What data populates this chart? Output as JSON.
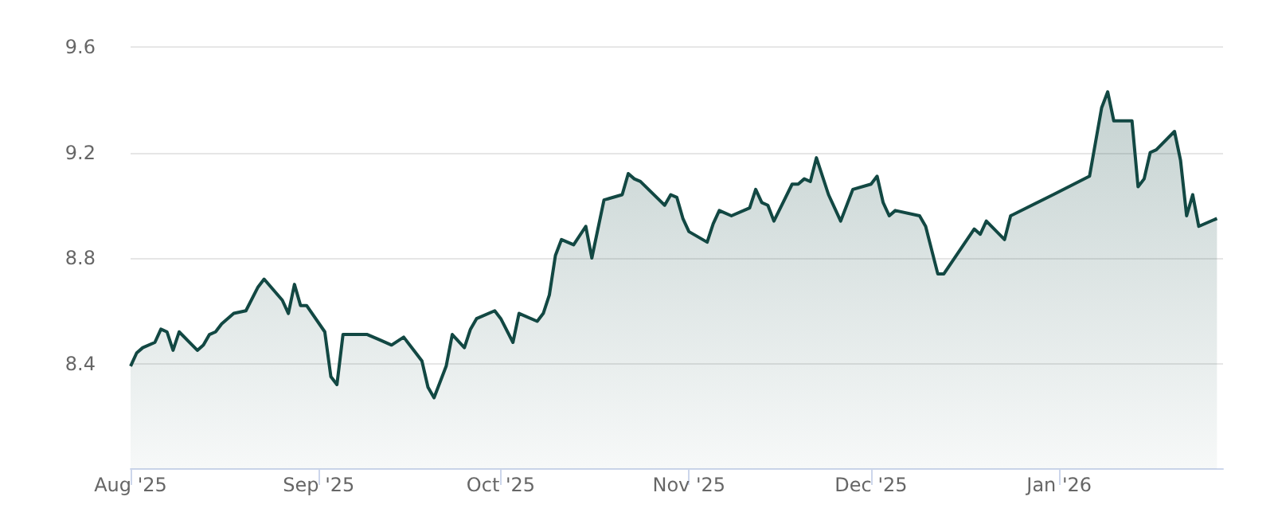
{
  "chart_data": {
    "type": "area",
    "x": [
      "2025-08-01",
      "2025-08-02",
      "2025-08-03",
      "2025-08-05",
      "2025-08-06",
      "2025-08-07",
      "2025-08-08",
      "2025-08-09",
      "2025-08-12",
      "2025-08-13",
      "2025-08-14",
      "2025-08-15",
      "2025-08-16",
      "2025-08-18",
      "2025-08-20",
      "2025-08-22",
      "2025-08-23",
      "2025-08-26",
      "2025-08-27",
      "2025-08-28",
      "2025-08-29",
      "2025-08-30",
      "2025-09-02",
      "2025-09-03",
      "2025-09-04",
      "2025-09-05",
      "2025-09-09",
      "2025-09-11",
      "2025-09-13",
      "2025-09-15",
      "2025-09-17",
      "2025-09-18",
      "2025-09-19",
      "2025-09-20",
      "2025-09-22",
      "2025-09-23",
      "2025-09-25",
      "2025-09-26",
      "2025-09-27",
      "2025-09-30",
      "2025-10-01",
      "2025-10-03",
      "2025-10-04",
      "2025-10-07",
      "2025-10-08",
      "2025-10-09",
      "2025-10-10",
      "2025-10-11",
      "2025-10-13",
      "2025-10-15",
      "2025-10-16",
      "2025-10-18",
      "2025-10-21",
      "2025-10-22",
      "2025-10-23",
      "2025-10-24",
      "2025-10-28",
      "2025-10-29",
      "2025-10-30",
      "2025-10-31",
      "2025-11-01",
      "2025-11-04",
      "2025-11-05",
      "2025-11-06",
      "2025-11-08",
      "2025-11-11",
      "2025-11-12",
      "2025-11-13",
      "2025-11-14",
      "2025-11-15",
      "2025-11-18",
      "2025-11-19",
      "2025-11-20",
      "2025-11-21",
      "2025-11-22",
      "2025-11-24",
      "2025-11-26",
      "2025-11-28",
      "2025-12-01",
      "2025-12-02",
      "2025-12-03",
      "2025-12-04",
      "2025-12-05",
      "2025-12-09",
      "2025-12-10",
      "2025-12-12",
      "2025-12-13",
      "2025-12-18",
      "2025-12-19",
      "2025-12-20",
      "2025-12-23",
      "2025-12-24",
      "2025-12-31",
      "2026-01-06",
      "2026-01-07",
      "2026-01-08",
      "2026-01-09",
      "2026-01-10",
      "2026-01-13",
      "2026-01-14",
      "2026-01-15",
      "2026-01-16",
      "2026-01-17",
      "2026-01-20",
      "2026-01-21",
      "2026-01-22",
      "2026-01-23",
      "2026-01-24",
      "2026-01-27"
    ],
    "series": [
      {
        "color": "#124843",
        "values": [
          8.39,
          8.44,
          8.46,
          8.48,
          8.53,
          8.52,
          8.45,
          8.52,
          8.45,
          8.47,
          8.51,
          8.52,
          8.55,
          8.59,
          8.6,
          8.69,
          8.72,
          8.64,
          8.59,
          8.7,
          8.62,
          8.62,
          8.52,
          8.35,
          8.32,
          8.51,
          8.51,
          8.49,
          8.47,
          8.5,
          8.44,
          8.41,
          8.31,
          8.27,
          8.39,
          8.51,
          8.46,
          8.53,
          8.57,
          8.6,
          8.57,
          8.48,
          8.59,
          8.56,
          8.59,
          8.66,
          8.81,
          8.87,
          8.85,
          8.92,
          8.8,
          9.02,
          9.04,
          9.12,
          9.1,
          9.09,
          9.0,
          9.04,
          9.03,
          8.95,
          8.9,
          8.86,
          8.93,
          8.98,
          8.96,
          8.99,
          9.06,
          9.01,
          9.0,
          8.94,
          9.08,
          9.08,
          9.1,
          9.09,
          9.18,
          9.04,
          8.94,
          9.06,
          9.08,
          9.11,
          9.01,
          8.96,
          8.98,
          8.96,
          8.92,
          8.74,
          8.74,
          8.91,
          8.89,
          8.94,
          8.87,
          8.96,
          9.04,
          9.11,
          9.24,
          9.37,
          9.43,
          9.32,
          9.32,
          9.07,
          9.1,
          9.2,
          9.21,
          9.28,
          9.17,
          8.96,
          9.04,
          8.92,
          8.95
        ]
      }
    ],
    "xlim": [
      "2025-08-01",
      "2026-01-28"
    ],
    "xticks": [
      {
        "value": "2025-08-01",
        "label": "Aug '25"
      },
      {
        "value": "2025-09-01",
        "label": "Sep '25"
      },
      {
        "value": "2025-10-01",
        "label": "Oct '25"
      },
      {
        "value": "2025-11-01",
        "label": "Nov '25"
      },
      {
        "value": "2025-12-01",
        "label": "Dec '25"
      },
      {
        "value": "2026-01-01",
        "label": "Jan '26"
      }
    ],
    "ylim": [
      8.0,
      9.6
    ],
    "yticks": [
      8.4,
      8.8,
      9.2,
      9.6
    ],
    "grid": "y"
  }
}
